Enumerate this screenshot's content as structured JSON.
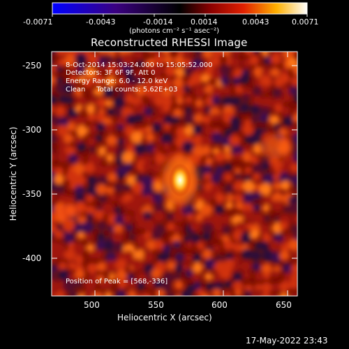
{
  "colorbar": {
    "ticks": [
      "-0.0071",
      "-0.0043",
      "-0.0014",
      "0.0014",
      "0.0043",
      "0.0071"
    ],
    "units_label": "(photons cm⁻² s⁻¹ asec⁻²)"
  },
  "plot": {
    "title": "Reconstructed RHESSI Image",
    "xlabel": "Heliocentric X (arcsec)",
    "ylabel": "Heliocentric Y (arcsec)",
    "xticks": [
      "500",
      "550",
      "600",
      "650"
    ],
    "yticks": [
      "-250",
      "-300",
      "-350",
      "-400"
    ],
    "annotations": {
      "time": "8-Oct-2014 15:03:24.000 to 15:05:52.000",
      "detectors": "Detectors: 3F 6F 9F, Att 0",
      "energy": "Energy Range: 6.0 - 12.0 keV",
      "clean": "Clean     Total counts: 5.62E+03",
      "peak": "Position of Peak = [568,-336]"
    }
  },
  "timestamp": "17-May-2022 23:43"
}
